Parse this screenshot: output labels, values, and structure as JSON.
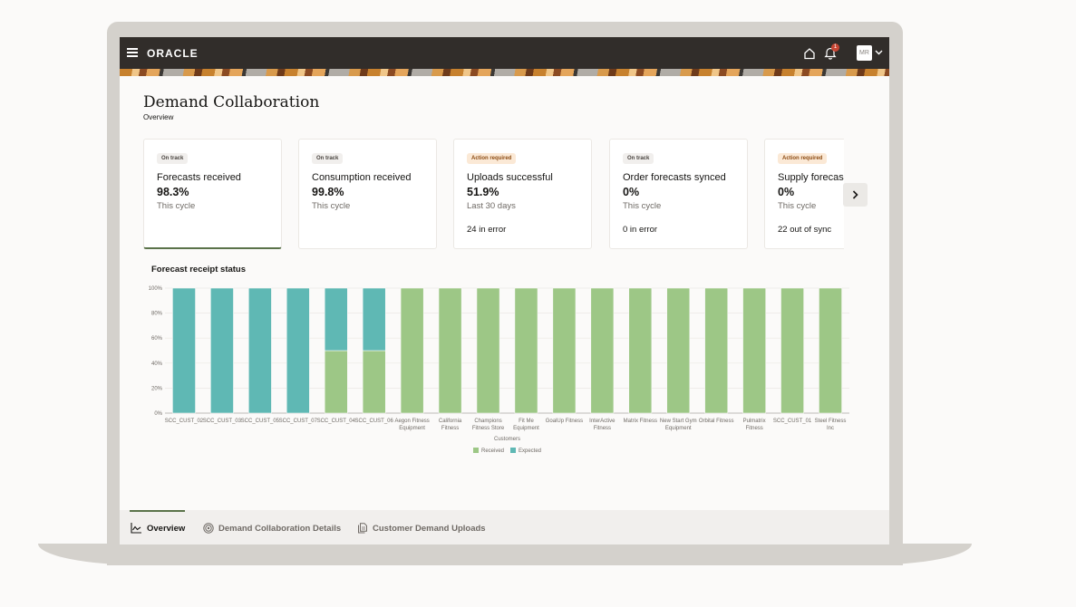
{
  "header": {
    "logo": "ORACLE",
    "notification_count": "1",
    "user_initials": "MR"
  },
  "page": {
    "title": "Demand Collaboration",
    "subtitle": "Overview"
  },
  "cards": [
    {
      "status": "On track",
      "status_type": "ok",
      "title": "Forecasts received",
      "value": "98.3%",
      "period": "This cycle",
      "footer": ""
    },
    {
      "status": "On track",
      "status_type": "ok",
      "title": "Consumption received",
      "value": "99.8%",
      "period": "This cycle",
      "footer": ""
    },
    {
      "status": "Action required",
      "status_type": "warn",
      "title": "Uploads successful",
      "value": "51.9%",
      "period": "Last 30 days",
      "footer": "24 in error"
    },
    {
      "status": "On track",
      "status_type": "ok",
      "title": "Order forecasts synced",
      "value": "0%",
      "period": "This cycle",
      "footer": "0 in error"
    },
    {
      "status": "Action required",
      "status_type": "warn",
      "title": "Supply forecas",
      "value": "0%",
      "period": "This cycle",
      "footer": "22 out of sync"
    }
  ],
  "chart_title": "Forecast receipt status",
  "chart_data": {
    "type": "bar",
    "stacked": true,
    "title": "Forecast receipt status",
    "xlabel": "Customers",
    "ylabel": "",
    "ylim": [
      0,
      100
    ],
    "yticks": [
      "0%",
      "20%",
      "40%",
      "60%",
      "80%",
      "100%"
    ],
    "grid": true,
    "legend_position": "bottom-center",
    "categories": [
      "SCC_CUST_02",
      "SCC_CUST_03",
      "SCC_CUST_05",
      "SCC_CUST_07",
      "SCC_CUST_04",
      "SCC_CUST_06",
      "Aegon Fitness Equipment",
      "California Fitness",
      "Champions Fitness Store",
      "Fit Me Equipment",
      "GoalUp Fitness",
      "InterActive Fitness",
      "Matrix Fitness",
      "New Start Gym Equipment",
      "Orbital Fitness",
      "Pulmatrix Fitness",
      "SCC_CUST_01",
      "Steel Fitness Inc"
    ],
    "category_lines": [
      [
        "SCC_CUST_02"
      ],
      [
        "SCC_CUST_03"
      ],
      [
        "SCC_CUST_05"
      ],
      [
        "SCC_CUST_07"
      ],
      [
        "SCC_CUST_04"
      ],
      [
        "SCC_CUST_06"
      ],
      [
        "Aegon Fitness",
        "Equipment"
      ],
      [
        "California",
        "Fitness"
      ],
      [
        "Champions",
        "Fitness Store"
      ],
      [
        "Fit Me",
        "Equipment"
      ],
      [
        "GoalUp Fitness"
      ],
      [
        "InterActive",
        "Fitness"
      ],
      [
        "Matrix Fitness"
      ],
      [
        "New Start Gym",
        "Equipment"
      ],
      [
        "Orbital Fitness"
      ],
      [
        "Pulmatrix",
        "Fitness"
      ],
      [
        "SCC_CUST_01"
      ],
      [
        "Steel Fitness",
        "Inc"
      ]
    ],
    "series": [
      {
        "name": "Received",
        "color": "#9dc786",
        "values": [
          0,
          0,
          0,
          0,
          50,
          50,
          100,
          100,
          100,
          100,
          100,
          100,
          100,
          100,
          100,
          100,
          100,
          100
        ]
      },
      {
        "name": "Expected",
        "color": "#5fb8b4",
        "values": [
          100,
          100,
          100,
          100,
          50,
          50,
          0,
          0,
          0,
          0,
          0,
          0,
          0,
          0,
          0,
          0,
          0,
          0
        ]
      }
    ]
  },
  "bottom_nav": {
    "tabs": [
      {
        "label": "Overview",
        "icon": "line-chart-icon",
        "active": true
      },
      {
        "label": "Demand Collaboration Details",
        "icon": "target-icon",
        "active": false
      },
      {
        "label": "Customer Demand Uploads",
        "icon": "document-icon",
        "active": false
      }
    ]
  },
  "colors": {
    "topbar": "#312d2a",
    "accent": "#5a7249",
    "received": "#9dc786",
    "expected": "#5fb8b4",
    "badge_alert": "#c74634"
  }
}
